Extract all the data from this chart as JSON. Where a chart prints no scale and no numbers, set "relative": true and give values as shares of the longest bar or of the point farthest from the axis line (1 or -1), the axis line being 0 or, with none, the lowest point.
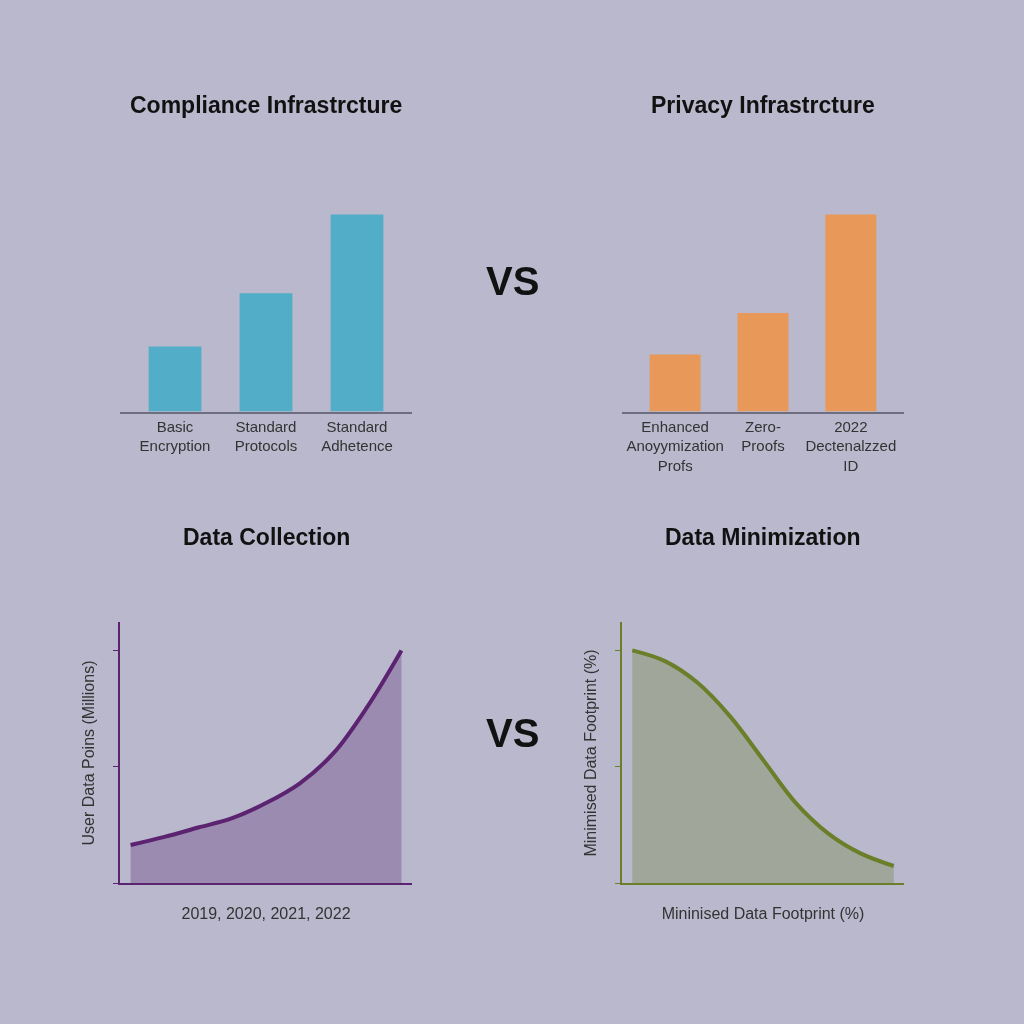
{
  "chart_data": [
    {
      "type": "bar",
      "title": "Compliance Infrastrcture",
      "categories": [
        "Basic Encryption",
        "Standard Protocols",
        "Standard Adhetence"
      ],
      "values": [
        0.33,
        0.6,
        1.0
      ],
      "color": "#52aec8",
      "relative": true,
      "annotations": [
        "VS"
      ]
    },
    {
      "type": "bar",
      "title": "Privacy Infrastrcture",
      "categories": [
        "Enhanced Anoyymization Profs",
        "Zero- Proofs",
        "2022 Dectenalzzed ID"
      ],
      "values": [
        0.29,
        0.5,
        1.0
      ],
      "color": "#e8995a",
      "relative": true
    },
    {
      "type": "area",
      "title": "Data Collection",
      "xlabel": "2019, 2020, 2021, 2022",
      "ylabel": "User Data Poins (Millions)",
      "categories": [
        null,
        null,
        null,
        null,
        null,
        null,
        null,
        null,
        null
      ],
      "values": [
        0.165,
        0.2,
        0.24,
        0.28,
        0.345,
        0.43,
        0.56,
        0.76,
        1.0
      ],
      "color": "#5b2370",
      "relative": true,
      "annotations": [
        "VS"
      ]
    },
    {
      "type": "area",
      "title": "Data Minimization",
      "xlabel": "Mininised Data Footprint (%)",
      "ylabel": "Minimised Data Footprint (%)",
      "categories": [
        null,
        null,
        null,
        null,
        null,
        null,
        null,
        null,
        null
      ],
      "values": [
        1.0,
        0.954,
        0.861,
        0.716,
        0.531,
        0.346,
        0.214,
        0.128,
        0.075
      ],
      "color": "#6b7f2a",
      "relative": true
    }
  ]
}
